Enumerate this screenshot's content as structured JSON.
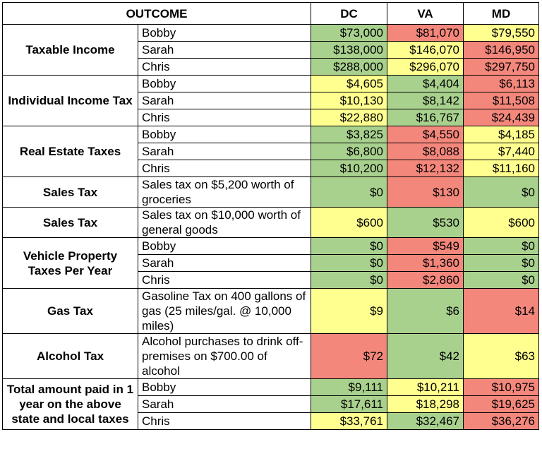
{
  "headers": {
    "outcome": "OUTCOME",
    "dc": "DC",
    "va": "VA",
    "md": "MD"
  },
  "colors": {
    "green": "#a9d18e",
    "yellow": "#ffff8f",
    "red": "#f4877c"
  },
  "groups": [
    {
      "category": "Taxable Income",
      "rows": [
        {
          "label": "Bobby",
          "dc": "$73,000",
          "va": "$81,070",
          "md": "$79,550",
          "colors": [
            "g",
            "r",
            "y"
          ]
        },
        {
          "label": "Sarah",
          "dc": "$138,000",
          "va": "$146,070",
          "md": "$146,950",
          "colors": [
            "g",
            "y",
            "r"
          ]
        },
        {
          "label": "Chris",
          "dc": "$288,000",
          "va": "$296,070",
          "md": "$297,750",
          "colors": [
            "g",
            "y",
            "r"
          ]
        }
      ]
    },
    {
      "category": "Individual Income Tax",
      "rows": [
        {
          "label": "Bobby",
          "dc": "$4,605",
          "va": "$4,404",
          "md": "$6,113",
          "colors": [
            "y",
            "g",
            "r"
          ]
        },
        {
          "label": "Sarah",
          "dc": "$10,130",
          "va": "$8,142",
          "md": "$11,508",
          "colors": [
            "y",
            "g",
            "r"
          ]
        },
        {
          "label": "Chris",
          "dc": "$22,880",
          "va": "$16,767",
          "md": "$24,439",
          "colors": [
            "y",
            "g",
            "r"
          ]
        }
      ]
    },
    {
      "category": "Real Estate Taxes",
      "rows": [
        {
          "label": "Bobby",
          "dc": "$3,825",
          "va": "$4,550",
          "md": "$4,185",
          "colors": [
            "g",
            "r",
            "y"
          ]
        },
        {
          "label": "Sarah",
          "dc": "$6,800",
          "va": "$8,088",
          "md": "$7,440",
          "colors": [
            "g",
            "r",
            "y"
          ]
        },
        {
          "label": "Chris",
          "dc": "$10,200",
          "va": "$12,132",
          "md": "$11,160",
          "colors": [
            "g",
            "r",
            "y"
          ]
        }
      ]
    },
    {
      "category": "Sales Tax",
      "rows": [
        {
          "label": "Sales tax on $5,200 worth of groceries",
          "dc": "$0",
          "va": "$130",
          "md": "$0",
          "colors": [
            "g",
            "r",
            "g"
          ]
        }
      ]
    },
    {
      "category": "Sales Tax",
      "rows": [
        {
          "label": "Sales tax on $10,000 worth of general goods",
          "dc": "$600",
          "va": "$530",
          "md": "$600",
          "colors": [
            "y",
            "g",
            "y"
          ]
        }
      ]
    },
    {
      "category": "Vehicle Property Taxes Per Year",
      "rows": [
        {
          "label": "Bobby",
          "dc": "$0",
          "va": "$549",
          "md": "$0",
          "colors": [
            "g",
            "r",
            "g"
          ]
        },
        {
          "label": "Sarah",
          "dc": "$0",
          "va": "$1,360",
          "md": "$0",
          "colors": [
            "g",
            "r",
            "g"
          ]
        },
        {
          "label": "Chris",
          "dc": "$0",
          "va": "$2,860",
          "md": "$0",
          "colors": [
            "g",
            "r",
            "g"
          ]
        }
      ]
    },
    {
      "category": "Gas Tax",
      "rows": [
        {
          "label": "Gasoline Tax on 400 gallons of gas (25 miles/gal. @ 10,000 miles)",
          "dc": "$9",
          "va": "$6",
          "md": "$14",
          "colors": [
            "y",
            "g",
            "r"
          ]
        }
      ]
    },
    {
      "category": "Alcohol Tax",
      "rows": [
        {
          "label": "Alcohol purchases to drink off-premises on $700.00 of alcohol",
          "dc": "$72",
          "va": "$42",
          "md": "$63",
          "colors": [
            "r",
            "g",
            "y"
          ]
        }
      ]
    },
    {
      "category": "Total amount paid in 1 year on the above state and local taxes",
      "rows": [
        {
          "label": "Bobby",
          "dc": "$9,111",
          "va": "$10,211",
          "md": "$10,975",
          "colors": [
            "g",
            "y",
            "r"
          ]
        },
        {
          "label": "Sarah",
          "dc": "$17,611",
          "va": "$18,298",
          "md": "$19,625",
          "colors": [
            "g",
            "y",
            "r"
          ]
        },
        {
          "label": "Chris",
          "dc": "$33,761",
          "va": "$32,467",
          "md": "$36,276",
          "colors": [
            "y",
            "g",
            "r"
          ]
        }
      ]
    }
  ]
}
